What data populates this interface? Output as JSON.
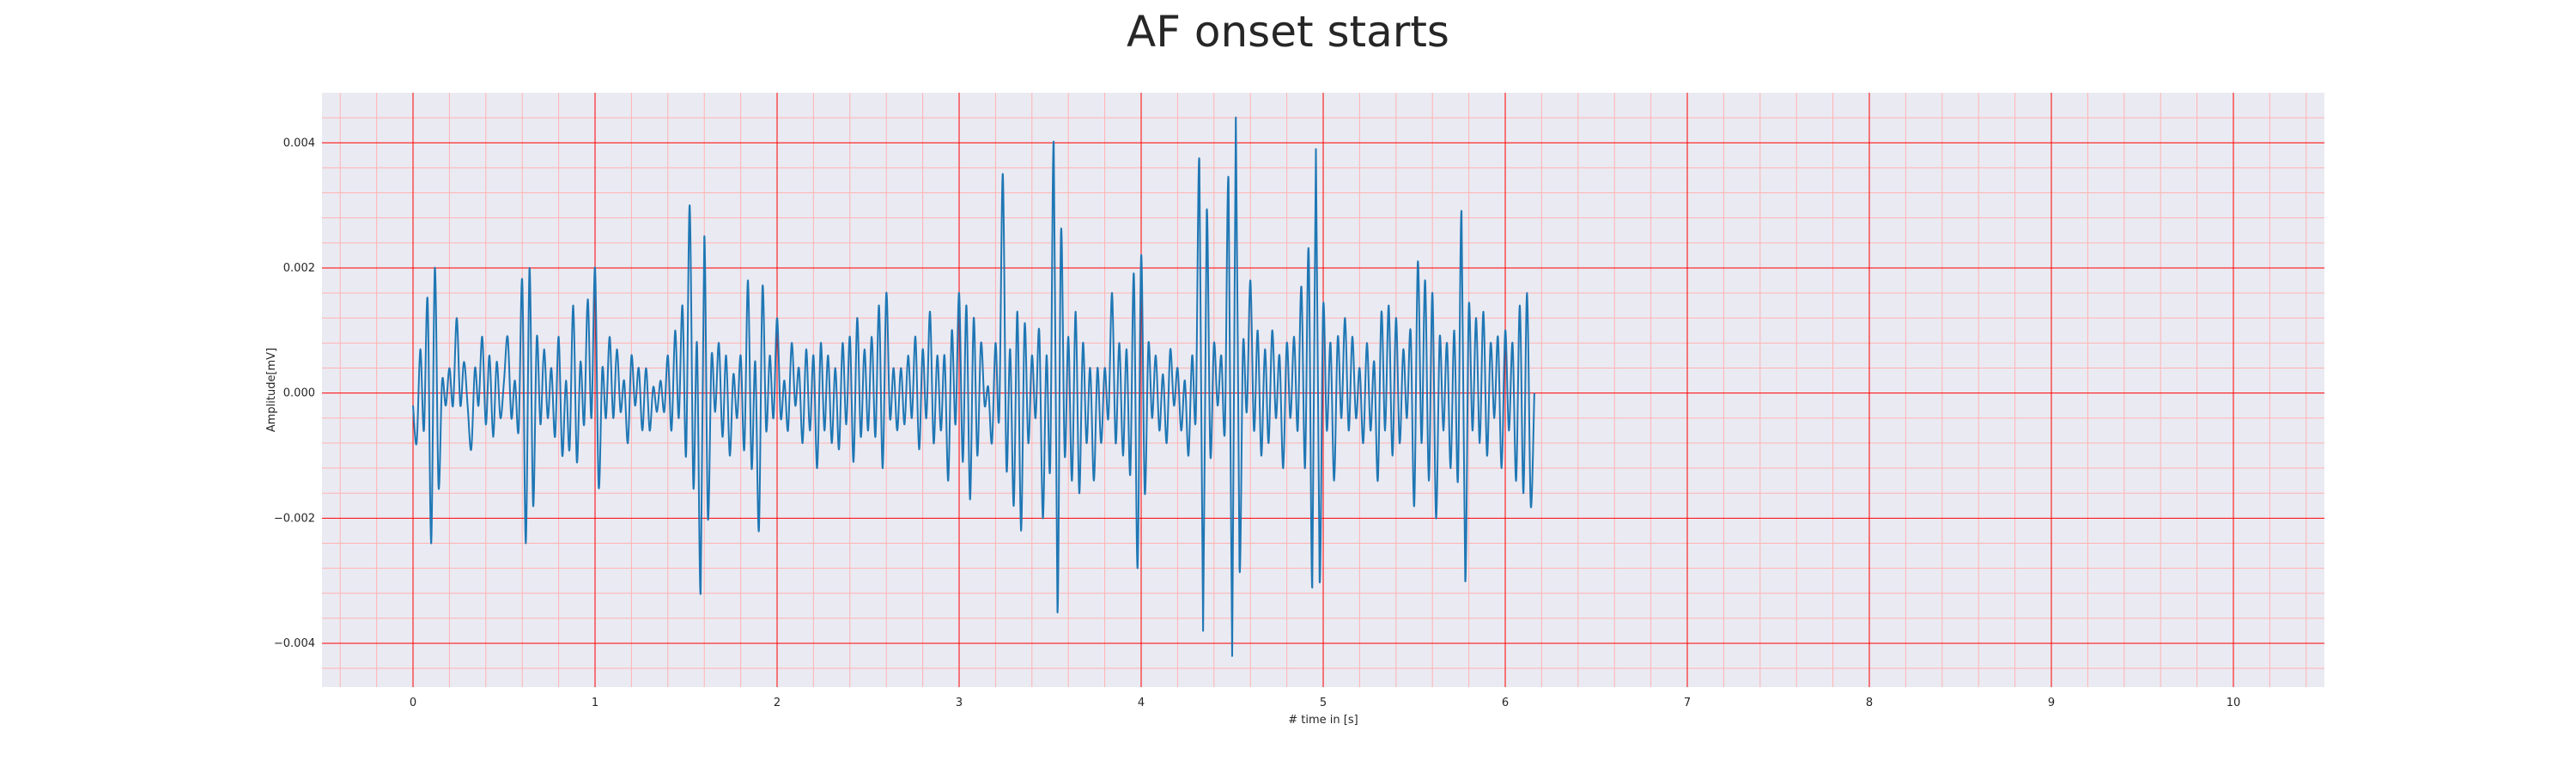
{
  "chart_data": {
    "type": "line",
    "title": "AF onset starts",
    "xlabel": "# time in [s]",
    "ylabel": "Amplitude[mV]",
    "xlim": [
      -0.5,
      10.5
    ],
    "ylim": [
      -0.0047,
      0.0048
    ],
    "x_ticks": [
      0,
      1,
      2,
      3,
      4,
      5,
      6,
      7,
      8,
      9,
      10
    ],
    "y_ticks": [
      -0.004,
      -0.002,
      0.0,
      0.002,
      0.004
    ],
    "x_tick_labels": [
      "0",
      "1",
      "2",
      "3",
      "4",
      "5",
      "6",
      "7",
      "8",
      "9",
      "10"
    ],
    "y_tick_labels": [
      "−0.004",
      "−0.002",
      "0.000",
      "0.002",
      "0.004"
    ],
    "grid": true,
    "minor_grid": true,
    "sample_interval_s": 0.02,
    "colors": {
      "line": "#1f77b4",
      "major_grid": "#ff0000",
      "minor_grid": "#ffb3b3",
      "background": "#eaeaf2"
    },
    "series": [
      {
        "values": [
          -0.0002,
          -0.0008,
          0.0007,
          -0.0006,
          0.0015,
          -0.0024,
          0.002,
          -0.0015,
          0.0002,
          -0.0002,
          0.0004,
          -0.0002,
          0.0012,
          -0.0002,
          0.0005,
          -0.0002,
          -0.0009,
          0.0004,
          -0.0002,
          0.0009,
          -0.0005,
          0.0006,
          -0.0007,
          0.0005,
          -0.0004,
          0.0002,
          0.0009,
          -0.0004,
          0.0002,
          -0.0006,
          0.0018,
          -0.0024,
          0.002,
          -0.0018,
          0.0009,
          -0.0005,
          0.0007,
          -0.0004,
          0.0004,
          -0.0007,
          0.0009,
          -0.001,
          0.0002,
          -0.0009,
          0.0014,
          -0.0011,
          0.0005,
          -0.0005,
          0.0015,
          -0.0004,
          0.002,
          -0.0015,
          0.0004,
          -0.0004,
          0.0009,
          -0.0004,
          0.0007,
          -0.0003,
          0.0002,
          -0.0008,
          0.0006,
          -0.0002,
          0.0004,
          -0.0006,
          0.0004,
          -0.0006,
          0.0001,
          -0.0003,
          0.0002,
          -0.0003,
          0.0006,
          -0.0006,
          0.001,
          -0.0004,
          0.0014,
          -0.001,
          0.003,
          -0.0015,
          0.0008,
          -0.0032,
          0.0025,
          -0.002,
          0.0006,
          -0.0003,
          0.0008,
          -0.0007,
          0.0006,
          -0.001,
          0.0003,
          -0.0004,
          0.0006,
          -0.0009,
          0.0018,
          -0.0012,
          0.0005,
          -0.0022,
          0.0017,
          -0.0006,
          0.0006,
          -0.0004,
          0.0012,
          -0.0004,
          0.0002,
          -0.0006,
          0.0008,
          -0.0002,
          0.0004,
          -0.0008,
          0.0007,
          -0.0006,
          0.0006,
          -0.0012,
          0.0008,
          -0.0006,
          0.0006,
          -0.0008,
          0.0004,
          -0.0009,
          0.0008,
          -0.0005,
          0.0009,
          -0.0011,
          0.0012,
          -0.0007,
          0.0007,
          -0.0006,
          0.0009,
          -0.0007,
          0.0014,
          -0.0012,
          0.0016,
          -0.0004,
          0.0004,
          -0.0006,
          0.0004,
          -0.0005,
          0.0006,
          -0.0004,
          0.0009,
          -0.0009,
          0.0007,
          -0.0004,
          0.0013,
          -0.0008,
          0.0006,
          -0.0006,
          0.0006,
          -0.0014,
          0.001,
          -0.0005,
          0.0016,
          -0.0011,
          0.0014,
          -0.0017,
          0.0012,
          -0.001,
          0.0008,
          -0.0002,
          0.0001,
          -0.0008,
          0.0008,
          -0.0004,
          0.0035,
          -0.0012,
          0.0007,
          -0.0018,
          0.0013,
          -0.0022,
          0.0011,
          -0.0008,
          0.0006,
          -0.0004,
          0.001,
          -0.002,
          0.0006,
          -0.0012,
          0.004,
          -0.0035,
          0.0026,
          -0.001,
          0.0009,
          -0.0014,
          0.0013,
          -0.0016,
          0.0008,
          -0.0008,
          0.0004,
          -0.0014,
          0.0004,
          -0.0008,
          0.0004,
          -0.0004,
          0.0016,
          -0.0008,
          0.0008,
          -0.001,
          0.0007,
          -0.0013,
          0.0019,
          -0.0028,
          0.0022,
          -0.0016,
          0.0008,
          -0.0004,
          0.0006,
          -0.0006,
          0.0003,
          -0.0008,
          0.0007,
          -0.0002,
          0.0004,
          -0.0006,
          0.0002,
          -0.001,
          0.0006,
          -0.0004,
          0.0037,
          -0.0038,
          0.0029,
          -0.001,
          0.0008,
          -0.0002,
          0.0006,
          -0.0006,
          0.0034,
          -0.0042,
          0.0044,
          -0.0028,
          0.0008,
          -0.0003,
          0.0018,
          -0.0006,
          0.001,
          -0.001,
          0.0007,
          -0.0008,
          0.001,
          -0.0004,
          0.0006,
          -0.0012,
          0.0008,
          -0.0004,
          0.0009,
          -0.0006,
          0.0017,
          -0.0012,
          0.0023,
          -0.0031,
          0.0039,
          -0.003,
          0.0014,
          -0.0006,
          0.0008,
          -0.0014,
          0.0009,
          -0.0004,
          0.0012,
          -0.0006,
          0.0009,
          -0.0004,
          0.0004,
          -0.0008,
          0.0008,
          -0.0006,
          0.0005,
          -0.0014,
          0.0013,
          -0.0006,
          0.0014,
          -0.001,
          0.0012,
          -0.0008,
          0.0007,
          -0.0004,
          0.001,
          -0.0018,
          0.0021,
          -0.0008,
          0.0018,
          -0.0014,
          0.0016,
          -0.002,
          0.0009,
          -0.0006,
          0.0008,
          -0.0012,
          0.001,
          -0.0014,
          0.0029,
          -0.003,
          0.0014,
          -0.0006,
          0.0012,
          -0.0008,
          0.0013,
          -0.001,
          0.0008,
          -0.0004,
          0.0009,
          -0.0012,
          0.001,
          -0.0006,
          0.0008,
          -0.0014,
          0.0014,
          -0.0016,
          0.0016,
          -0.0018,
          0.0
        ]
      }
    ]
  }
}
